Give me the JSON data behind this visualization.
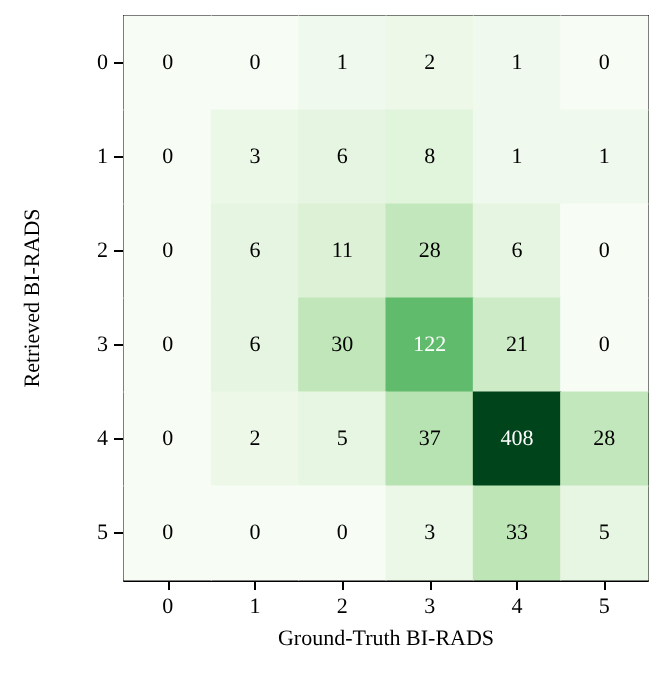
{
  "chart_data": {
    "type": "heatmap",
    "xlabel": "Ground-Truth BI-RADS",
    "ylabel": "Retrieved BI-RADS",
    "categories": [
      "0",
      "1",
      "2",
      "3",
      "4",
      "5"
    ],
    "y_categories": [
      "0",
      "1",
      "2",
      "3",
      "4",
      "5"
    ],
    "cells": [
      [
        0,
        0,
        1,
        2,
        1,
        0
      ],
      [
        0,
        3,
        6,
        8,
        1,
        1
      ],
      [
        0,
        6,
        11,
        28,
        6,
        0
      ],
      [
        0,
        6,
        30,
        122,
        21,
        0
      ],
      [
        0,
        2,
        5,
        37,
        408,
        28
      ],
      [
        0,
        0,
        0,
        3,
        33,
        5
      ]
    ],
    "data_labels": true
  }
}
